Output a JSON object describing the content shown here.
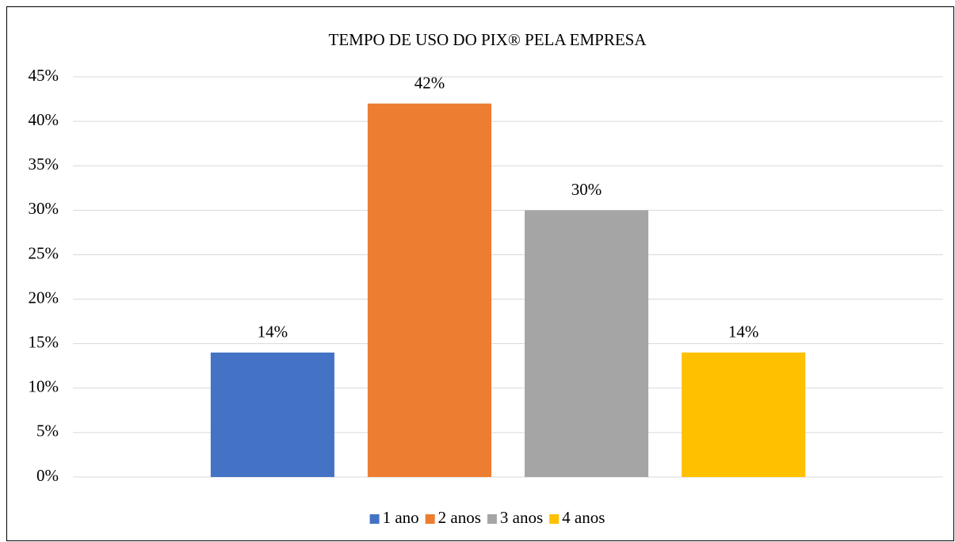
{
  "chart_data": {
    "type": "bar",
    "title": "TEMPO DE USO DO PIX® PELA EMPRESA",
    "categories": [
      null
    ],
    "series": [
      {
        "name": "1 ano",
        "color": "#4472c4",
        "values": [
          14
        ],
        "value_labels": [
          "14%"
        ]
      },
      {
        "name": "2 anos",
        "color": "#ed7d31",
        "values": [
          42
        ],
        "value_labels": [
          "42%"
        ]
      },
      {
        "name": "3 anos",
        "color": "#a5a5a5",
        "values": [
          30
        ],
        "value_labels": [
          "30%"
        ]
      },
      {
        "name": "4 anos",
        "color": "#ffc000",
        "values": [
          14
        ],
        "value_labels": [
          "14%"
        ]
      }
    ],
    "ylim": [
      0,
      45
    ],
    "yticks": [
      {
        "value": 0,
        "label": "0%"
      },
      {
        "value": 5,
        "label": "5%"
      },
      {
        "value": 10,
        "label": "10%"
      },
      {
        "value": 15,
        "label": "15%"
      },
      {
        "value": 20,
        "label": "20%"
      },
      {
        "value": 25,
        "label": "25%"
      },
      {
        "value": 30,
        "label": "30%"
      },
      {
        "value": 35,
        "label": "35%"
      },
      {
        "value": 40,
        "label": "40%"
      },
      {
        "value": 45,
        "label": "45%"
      }
    ],
    "grid": true,
    "legend": "bottom"
  }
}
